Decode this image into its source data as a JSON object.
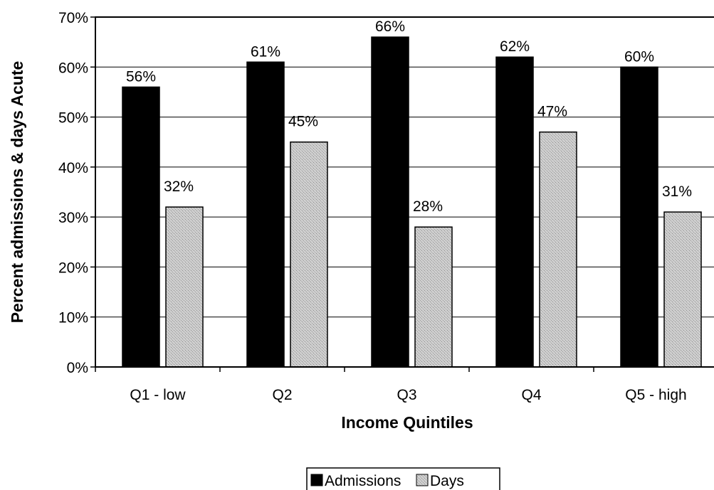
{
  "chart_data": {
    "type": "bar",
    "title": "",
    "xlabel": "Income Quintiles",
    "ylabel": "Percent admissions & days Acute",
    "categories": [
      "Q1 - low",
      "Q2",
      "Q3",
      "Q4",
      "Q5 - high"
    ],
    "series": [
      {
        "name": "Admissions",
        "values": [
          56,
          61,
          66,
          62,
          60
        ],
        "labels": [
          "56%",
          "61%",
          "66%",
          "62%",
          "60%"
        ],
        "color": "#000000"
      },
      {
        "name": "Days",
        "values": [
          32,
          45,
          28,
          47,
          31
        ],
        "labels": [
          "32%",
          "45%",
          "28%",
          "47%",
          "31%"
        ],
        "color": "#c8c8c8"
      }
    ],
    "ylim": [
      0,
      70
    ],
    "yticks": [
      0,
      10,
      20,
      30,
      40,
      50,
      60,
      70
    ],
    "ytick_labels": [
      "0%",
      "10%",
      "20%",
      "30%",
      "40%",
      "50%",
      "60%",
      "70%"
    ],
    "grid": true,
    "legend_position": "bottom-center"
  }
}
